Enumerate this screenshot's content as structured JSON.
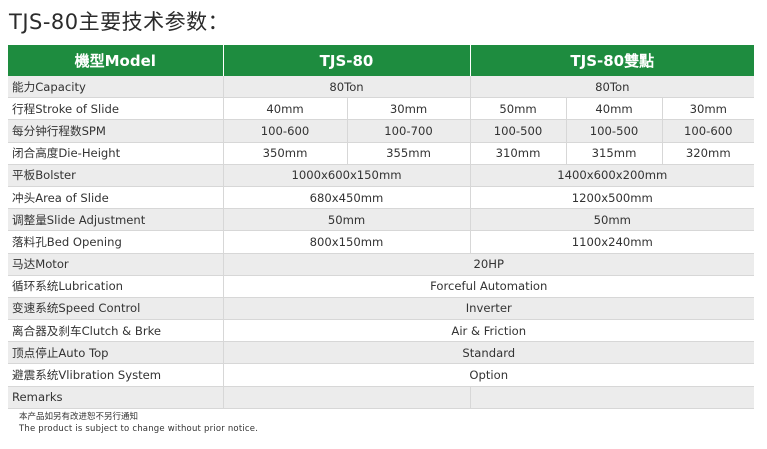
{
  "title": "TJS-80主要技术参数：",
  "header": {
    "model_label": "機型Model",
    "model_a": "TJS-80",
    "model_b": "TJS-80雙點"
  },
  "rows": [
    {
      "label": "能力Capacity",
      "cells": [
        {
          "v": "80Ton",
          "span": 2
        },
        {
          "v": "80Ton",
          "span": 3
        }
      ]
    },
    {
      "label": "行程Stroke of Slide",
      "cells": [
        {
          "v": "40mm",
          "span": 1
        },
        {
          "v": "30mm",
          "span": 1
        },
        {
          "v": "50mm",
          "span": 1
        },
        {
          "v": "40mm",
          "span": 1
        },
        {
          "v": "30mm",
          "span": 1
        }
      ]
    },
    {
      "label": "每分钟行程数SPM",
      "cells": [
        {
          "v": "100-600",
          "span": 1
        },
        {
          "v": "100-700",
          "span": 1
        },
        {
          "v": "100-500",
          "span": 1
        },
        {
          "v": "100-500",
          "span": 1
        },
        {
          "v": "100-600",
          "span": 1
        }
      ]
    },
    {
      "label": "闭合高度Die-Height",
      "cells": [
        {
          "v": "350mm",
          "span": 1
        },
        {
          "v": "355mm",
          "span": 1
        },
        {
          "v": "310mm",
          "span": 1
        },
        {
          "v": "315mm",
          "span": 1
        },
        {
          "v": "320mm",
          "span": 1
        }
      ]
    },
    {
      "label": "平板Bolster",
      "cells": [
        {
          "v": "1000x600x150mm",
          "span": 2
        },
        {
          "v": "1400x600x200mm",
          "span": 3
        }
      ]
    },
    {
      "label": "冲头Area of Slide",
      "cells": [
        {
          "v": "680x450mm",
          "span": 2
        },
        {
          "v": "1200x500mm",
          "span": 3
        }
      ]
    },
    {
      "label": "调整量Slide Adjustment",
      "cells": [
        {
          "v": "50mm",
          "span": 2
        },
        {
          "v": "50mm",
          "span": 3
        }
      ]
    },
    {
      "label": "落料孔Bed Opening",
      "cells": [
        {
          "v": "800x150mm",
          "span": 2
        },
        {
          "v": "1100x240mm",
          "span": 3
        }
      ]
    },
    {
      "label": "马达Motor",
      "cells": [
        {
          "v": "20HP",
          "span": 5
        }
      ]
    },
    {
      "label": "循环系统Lubrication",
      "cells": [
        {
          "v": "Forceful Automation",
          "span": 5
        }
      ]
    },
    {
      "label": "变速系统Speed Control",
      "cells": [
        {
          "v": "Inverter",
          "span": 5
        }
      ]
    },
    {
      "label": "离合器及刹车Clutch & Brke",
      "cells": [
        {
          "v": "Air & Friction",
          "span": 5
        }
      ]
    },
    {
      "label": "顶点停止Auto Top",
      "cells": [
        {
          "v": "Standard",
          "span": 5
        }
      ]
    },
    {
      "label": "避震系统Vlibration System",
      "cells": [
        {
          "v": "Option",
          "span": 5
        }
      ]
    },
    {
      "label": "Remarks",
      "cells": [
        {
          "v": "",
          "span": 2
        },
        {
          "v": "",
          "span": 3
        }
      ]
    }
  ],
  "footnote": {
    "zh": "本产品如另有改进恕不另行通知",
    "en": "The product is subject to change without prior notice."
  },
  "colors": {
    "header_green": "#1e8c3f",
    "stripe_gray": "#ececec"
  }
}
